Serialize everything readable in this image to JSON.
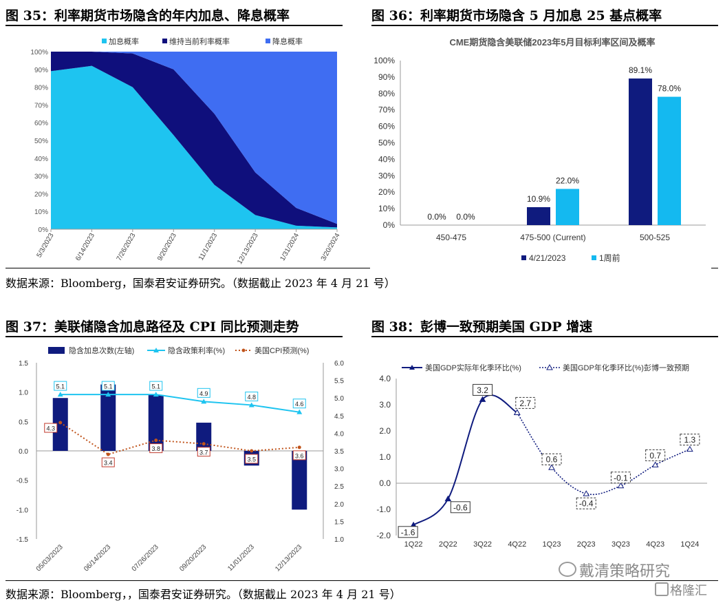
{
  "panels": {
    "p35": {
      "title": "图 35：利率期货市场隐含的年内加息、降息概率"
    },
    "p36": {
      "title": "图 36：利率期货市场隐含 5 月加息 25 基点概率"
    },
    "p37": {
      "title": "图 37：美联储隐含加息路径及 CPI 同比预测走势"
    },
    "p38": {
      "title": "图 38：彭博一致预期美国 GDP 增速"
    }
  },
  "sources": {
    "top": "数据来源：Bloomberg，国泰君安证券研究。（数据截止 2023 年 4 月 21 号）",
    "bottom": "数据来源：Bloomberg，，国泰君安证券研究。（数据截止 2023 年 4 月 21 号）"
  },
  "watermark": {
    "text1": "戴清策略研究",
    "text2": "格隆汇"
  },
  "chart_data": [
    {
      "id": "fig35",
      "type": "area",
      "stacked": true,
      "categories": [
        "5/3/2023",
        "6/14/2023",
        "7/26/2023",
        "9/20/2023",
        "11/1/2023",
        "12/13/2023",
        "1/31/2024",
        "3/20/2024"
      ],
      "series": [
        {
          "name": "加息概率",
          "color": "#1ec4f0",
          "values": [
            89,
            92,
            80,
            53,
            25,
            8,
            2,
            1
          ]
        },
        {
          "name": "维持当前利率概率",
          "color": "#0f0f7c",
          "values": [
            11,
            8,
            19,
            37,
            40,
            24,
            10,
            2
          ]
        },
        {
          "name": "降息概率",
          "color": "#3f6df2",
          "values": [
            0,
            0,
            1,
            10,
            35,
            68,
            88,
            97
          ]
        }
      ],
      "ylim": [
        0,
        100
      ],
      "yticks": [
        "0%",
        "10%",
        "20%",
        "30%",
        "40%",
        "50%",
        "60%",
        "70%",
        "80%",
        "90%",
        "100%"
      ],
      "legend": "top"
    },
    {
      "id": "fig36",
      "type": "bar",
      "title": "CME期货隐含美联储2023年5月目标利率区间及概率",
      "categories": [
        "450-475",
        "475-500 (Current)",
        "500-525"
      ],
      "series": [
        {
          "name": "4/21/2023",
          "color": "#0f1b7e",
          "values": [
            0.0,
            10.9,
            89.1
          ]
        },
        {
          "name": "1周前",
          "color": "#14b9f0",
          "values": [
            0.0,
            22.0,
            78.0
          ]
        }
      ],
      "labels": [
        [
          "0.0%",
          "10.9%",
          "89.1%"
        ],
        [
          "0.0%",
          "22.0%",
          "78.0%"
        ]
      ],
      "ylim": [
        0,
        100
      ],
      "yticks": [
        "0%",
        "10%",
        "20%",
        "30%",
        "40%",
        "50%",
        "60%",
        "70%",
        "80%",
        "90%",
        "100%"
      ],
      "legend": "bottom"
    },
    {
      "id": "fig37",
      "type": "bar",
      "categories": [
        "05/03/2023",
        "06/14/2023",
        "07/26/2023",
        "09/20/2023",
        "11/01/2023",
        "12/13/2023"
      ],
      "series": [
        {
          "name": "隐含加息次数(左轴)",
          "axis": "left",
          "kind": "bar",
          "color": "#0f1b7e",
          "values": [
            0.9,
            1.13,
            0.95,
            0.48,
            -0.25,
            -1.0
          ]
        },
        {
          "name": "隐含政策利率(%)",
          "axis": "right",
          "kind": "line",
          "color": "#1ec4f0",
          "values": [
            5.1,
            5.1,
            5.1,
            4.9,
            4.8,
            4.6
          ],
          "labels": [
            "5.1",
            "5.1",
            "5.1",
            "4.9",
            "4.8",
            "4.6"
          ]
        },
        {
          "name": "美国CPI预测(%)",
          "axis": "right",
          "kind": "dotted-line",
          "color": "#c0531a",
          "values": [
            4.3,
            3.4,
            3.8,
            3.7,
            3.5,
            3.6
          ],
          "labels": [
            "4.3",
            "3.4",
            "3.8",
            "3.7",
            "3.5",
            "3.6"
          ]
        }
      ],
      "ylim_left": [
        -1.5,
        1.5
      ],
      "yticks_left": [
        "-1.5",
        "-1.0",
        "-0.5",
        "0.0",
        "0.5",
        "1.0",
        "1.5"
      ],
      "ylim_right": [
        1.0,
        6.0
      ],
      "yticks_right": [
        "1.0",
        "1.5",
        "2.0",
        "2.5",
        "3.0",
        "3.5",
        "4.0",
        "4.5",
        "5.0",
        "5.5",
        "6.0"
      ],
      "legend": "top"
    },
    {
      "id": "fig38",
      "type": "line",
      "categories": [
        "1Q22",
        "2Q22",
        "3Q22",
        "4Q22",
        "1Q23",
        "2Q23",
        "3Q23",
        "4Q23",
        "1Q24"
      ],
      "series": [
        {
          "name": "美国GDP实际年化季环比(%)",
          "style": "solid",
          "color": "#0f1b7e",
          "values": [
            -1.6,
            -0.6,
            3.2,
            2.7,
            null,
            null,
            null,
            null,
            null
          ]
        },
        {
          "name": "美国GDP年化季环比(%)彭博一致预期",
          "style": "dotted",
          "color": "#0f1b7e",
          "values": [
            null,
            null,
            null,
            2.7,
            0.6,
            -0.4,
            -0.1,
            0.7,
            1.3
          ]
        }
      ],
      "labels": [
        "-1.6",
        "-0.6",
        "3.2",
        "2.7",
        "0.6",
        "-0.4",
        "-0.1",
        "0.7",
        "1.3"
      ],
      "ylim": [
        -2.0,
        4.0
      ],
      "yticks": [
        "-2.0",
        "-1.0",
        "0.0",
        "1.0",
        "2.0",
        "3.0",
        "4.0"
      ],
      "legend": "top"
    }
  ]
}
